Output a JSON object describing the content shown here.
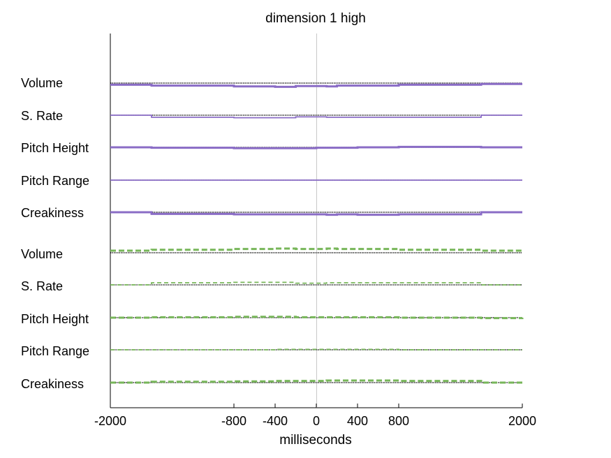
{
  "chart_data": {
    "type": "line",
    "title": "dimension  1 high",
    "xlabel": "milliseconds",
    "ylabel": "",
    "xlim": [
      -2000,
      2000
    ],
    "x_ticks": [
      -2000,
      -800,
      -400,
      0,
      400,
      800,
      2000
    ],
    "grid": false,
    "legend": "none",
    "colors": {
      "purple": "#8a6cc6",
      "green": "#77b659",
      "baseline": "#000000",
      "zero_line": "#c8c8c8"
    },
    "x": [
      -2000,
      -1600,
      -800,
      -400,
      -200,
      0,
      100,
      200,
      400,
      800,
      1600,
      2000
    ],
    "rows": [
      {
        "label": "Volume",
        "group": "purple",
        "style": "solid-thick",
        "values": [
          -4,
          -6,
          -8,
          -9,
          -7,
          -7,
          -8,
          -6,
          -6,
          -4,
          -2,
          -2
        ]
      },
      {
        "label": "S. Rate",
        "group": "purple",
        "style": "solid-thin",
        "values": [
          0,
          -5,
          -6,
          -6,
          -4,
          -4,
          -5,
          -5,
          -5,
          -5,
          0,
          0
        ]
      },
      {
        "label": "Pitch Height",
        "group": "purple",
        "style": "solid-thick",
        "values": [
          0,
          -1,
          -2,
          -2,
          -2,
          -1,
          -1,
          -1,
          0,
          1,
          0,
          0
        ]
      },
      {
        "label": "Pitch Range",
        "group": "purple",
        "style": "solid-thin",
        "values": [
          0,
          0,
          0,
          0,
          0,
          0,
          0,
          0,
          0,
          0,
          0,
          0
        ]
      },
      {
        "label": "Creakiness",
        "group": "purple",
        "style": "solid-thick",
        "values": [
          0,
          -4,
          -5,
          -5,
          -5,
          -5,
          -6,
          -5,
          -6,
          -5,
          0,
          0
        ]
      },
      {
        "label": "Volume",
        "group": "green",
        "style": "dashed-thick",
        "values": [
          5,
          7,
          9,
          10,
          9,
          9,
          10,
          9,
          9,
          7,
          5,
          5
        ]
      },
      {
        "label": "S. Rate",
        "group": "green",
        "style": "dashed-thin",
        "values": [
          0,
          5,
          6,
          6,
          4,
          4,
          5,
          5,
          5,
          5,
          0,
          0
        ]
      },
      {
        "label": "Pitch Height",
        "group": "green",
        "style": "dashed-thick",
        "values": [
          0,
          1,
          2,
          2,
          1,
          1,
          1,
          1,
          1,
          0,
          -1,
          0
        ]
      },
      {
        "label": "Pitch Range",
        "group": "green",
        "style": "dashed-thin",
        "values": [
          0,
          0,
          0,
          1,
          1,
          1,
          1,
          1,
          1,
          0,
          0,
          0
        ]
      },
      {
        "label": "Creakiness",
        "group": "green",
        "style": "dashed-thick",
        "values": [
          0,
          2,
          3,
          4,
          4,
          4,
          5,
          5,
          5,
          4,
          0,
          0
        ]
      }
    ]
  }
}
